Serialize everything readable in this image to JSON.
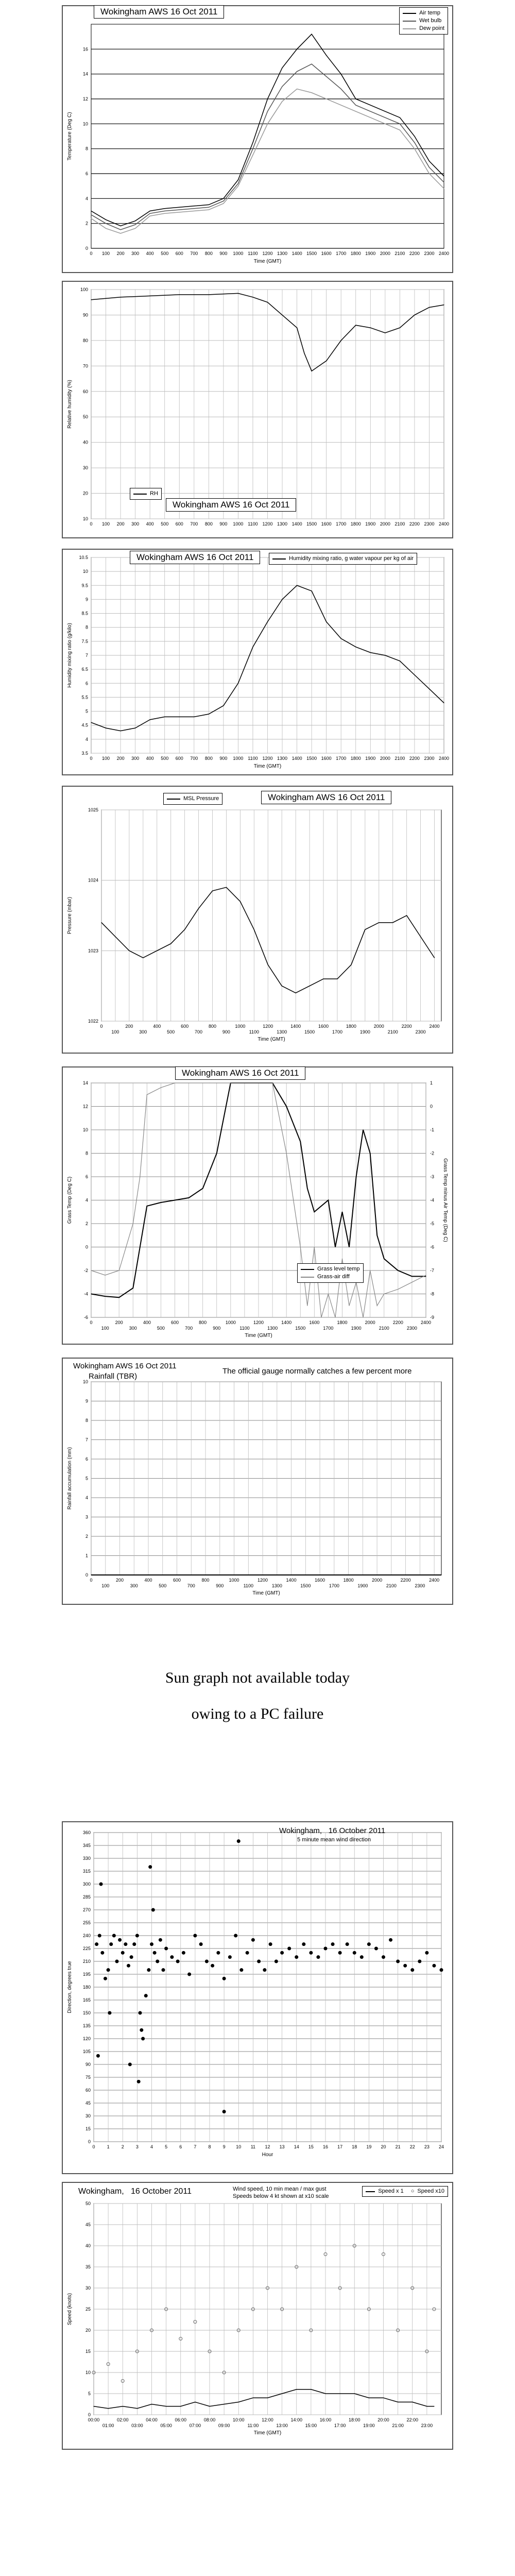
{
  "charts": [
    {
      "id": "temperature",
      "type": "line",
      "title": "Wokingham AWS 16 Oct 2011",
      "xlabel": "Time (GMT)",
      "ylabel": "Temperature (Deg C)",
      "xlim": [
        0,
        2400
      ],
      "ylim": [
        0,
        18
      ],
      "legend_position": "top-right",
      "series": [
        {
          "name": "Air temp",
          "color": "#000000",
          "x": [
            0,
            100,
            200,
            300,
            400,
            500,
            600,
            700,
            800,
            900,
            1000,
            1100,
            1200,
            1300,
            1400,
            1500,
            1600,
            1700,
            1800,
            1900,
            2000,
            2100,
            2200,
            2300,
            2400
          ],
          "y": [
            3,
            2.3,
            1.8,
            2.2,
            3,
            3.2,
            3.3,
            3.4,
            3.5,
            4,
            5.5,
            8.5,
            12,
            14.5,
            16,
            17.2,
            15.5,
            14,
            12,
            11.5,
            11,
            10.5,
            9,
            7,
            5.8
          ]
        },
        {
          "name": "Wet bulb",
          "color": "#555555",
          "x": [
            0,
            100,
            200,
            300,
            400,
            500,
            600,
            700,
            800,
            900,
            1000,
            1100,
            1200,
            1300,
            1400,
            1500,
            1600,
            1700,
            1800,
            1900,
            2000,
            2100,
            2200,
            2300,
            2400
          ],
          "y": [
            2.7,
            2,
            1.5,
            1.9,
            2.8,
            3,
            3.1,
            3.2,
            3.3,
            3.8,
            5.2,
            8,
            11,
            13,
            14.2,
            14.8,
            13.8,
            12.8,
            11.5,
            11,
            10.5,
            10,
            8.5,
            6.5,
            5.3
          ]
        },
        {
          "name": "Dew point",
          "color": "#999999",
          "x": [
            0,
            100,
            200,
            300,
            400,
            500,
            600,
            700,
            800,
            900,
            1000,
            1100,
            1200,
            1300,
            1400,
            1500,
            1600,
            1700,
            1800,
            1900,
            2000,
            2100,
            2200,
            2300,
            2400
          ],
          "y": [
            2.4,
            1.6,
            1.2,
            1.6,
            2.6,
            2.8,
            2.9,
            3,
            3.1,
            3.6,
            5,
            7.5,
            10,
            11.8,
            12.8,
            12.5,
            12,
            11.5,
            11,
            10.5,
            10,
            9.5,
            8,
            6,
            4.8
          ]
        }
      ]
    },
    {
      "id": "humidity",
      "type": "line",
      "title": "Wokingham AWS 16 Oct 2011",
      "xlabel": "",
      "ylabel": "Relative humidity (%)",
      "xlim": [
        0,
        2400
      ],
      "ylim": [
        10,
        100
      ],
      "legend_position": "bottom-left",
      "series": [
        {
          "name": "RH",
          "color": "#000000",
          "x": [
            0,
            200,
            400,
            600,
            800,
            1000,
            1100,
            1200,
            1300,
            1400,
            1450,
            1500,
            1550,
            1600,
            1700,
            1800,
            1900,
            2000,
            2100,
            2200,
            2300,
            2400
          ],
          "y": [
            96,
            97,
            97.5,
            98,
            98,
            98.5,
            97,
            95,
            90,
            85,
            75,
            68,
            70,
            72,
            80,
            86,
            85,
            83,
            85,
            90,
            93,
            94
          ]
        }
      ]
    },
    {
      "id": "mixing",
      "type": "line",
      "title": "Wokingham AWS 16 Oct 2011",
      "xlabel": "Time (GMT)",
      "ylabel": "Humidity mixing ratio (g/kilo)",
      "xlim": [
        0,
        2400
      ],
      "ylim": [
        3.5,
        10.5
      ],
      "legend_position": "top-right",
      "series": [
        {
          "name": "Humidity mixing ratio, g water vapour per kg of air",
          "color": "#000000",
          "x": [
            0,
            100,
            200,
            300,
            400,
            500,
            600,
            700,
            800,
            900,
            1000,
            1100,
            1200,
            1300,
            1400,
            1500,
            1600,
            1700,
            1800,
            1900,
            2000,
            2100,
            2200,
            2300,
            2400
          ],
          "y": [
            4.6,
            4.4,
            4.3,
            4.4,
            4.7,
            4.8,
            4.8,
            4.8,
            4.9,
            5.2,
            6,
            7.3,
            8.2,
            9,
            9.5,
            9.3,
            8.2,
            7.6,
            7.3,
            7.1,
            7,
            6.8,
            6.3,
            5.8,
            5.3
          ]
        }
      ]
    },
    {
      "id": "pressure",
      "type": "line",
      "title": "Wokingham AWS 16 Oct 2011",
      "xlabel": "Time (GMT)",
      "ylabel": "Pressure (mbar)",
      "xlim": [
        0,
        2450
      ],
      "ylim": [
        1022,
        1025
      ],
      "legend_position": "top-left",
      "series": [
        {
          "name": "MSL Pressure",
          "color": "#000000",
          "x": [
            0,
            100,
            200,
            300,
            400,
            500,
            600,
            700,
            800,
            900,
            1000,
            1100,
            1200,
            1300,
            1400,
            1500,
            1600,
            1700,
            1800,
            1900,
            2000,
            2100,
            2200,
            2300,
            2400
          ],
          "y": [
            1023.4,
            1023.2,
            1023.0,
            1022.9,
            1023.0,
            1023.1,
            1023.3,
            1023.6,
            1023.85,
            1023.9,
            1023.7,
            1023.3,
            1022.8,
            1022.5,
            1022.4,
            1022.5,
            1022.6,
            1022.6,
            1022.8,
            1023.3,
            1023.4,
            1023.4,
            1023.5,
            1023.2,
            1022.9
          ]
        }
      ]
    },
    {
      "id": "grass",
      "type": "line",
      "title": "Wokingham AWS 16 Oct 2011",
      "xlabel": "Time (GMT)",
      "ylabel": "Grass Temp (Deg C)",
      "ylabel_right": "Grass Temp minus Air Temp (Deg C)",
      "xlim": [
        0,
        2400
      ],
      "ylim": [
        -6,
        14
      ],
      "ylim_right": [
        -9,
        1
      ],
      "legend_position": "bottom-right",
      "series": [
        {
          "name": "Grass level temp",
          "color": "#000000",
          "x": [
            0,
            100,
            200,
            300,
            400,
            500,
            600,
            700,
            800,
            900,
            1000,
            1300,
            1400,
            1500,
            1550,
            1600,
            1700,
            1750,
            1800,
            1850,
            1900,
            1950,
            2000,
            2050,
            2100,
            2200,
            2300,
            2400
          ],
          "y": [
            -4,
            -4.2,
            -4.3,
            -3.5,
            3.5,
            3.8,
            4,
            4.2,
            5,
            8,
            14,
            14,
            12,
            9,
            5,
            3,
            4,
            0,
            3,
            0,
            6,
            10,
            8,
            1,
            -1,
            -2,
            -2.5,
            -2.5
          ]
        },
        {
          "name": "Grass-air diff",
          "color": "#888888",
          "axis": "right",
          "x": [
            0,
            100,
            200,
            300,
            350,
            400,
            500,
            600,
            700,
            800,
            850,
            900,
            1300,
            1400,
            1500,
            1550,
            1600,
            1650,
            1700,
            1750,
            1800,
            1850,
            1900,
            1950,
            2000,
            2050,
            2100,
            2200,
            2300,
            2400
          ],
          "y": [
            -7,
            -7.2,
            -7,
            -5,
            -3,
            0.5,
            0.8,
            1,
            1,
            1,
            1,
            1,
            1,
            -2,
            -6,
            -8.5,
            -6,
            -9,
            -8,
            -9,
            -6.5,
            -8.5,
            -7.5,
            -9,
            -7,
            -8.5,
            -8,
            -7.8,
            -7.5,
            -7.2
          ]
        }
      ]
    },
    {
      "id": "rainfall",
      "type": "line",
      "title": "Wokingham AWS 16 Oct 2011",
      "title2": "Rainfall (TBR)",
      "note": "The official gauge normally catches a few percent more",
      "xlabel": "Time (GMT)",
      "ylabel": "Rainfall accumulation (mm)",
      "xlim": [
        0,
        2450
      ],
      "ylim": [
        0,
        10
      ],
      "series": [
        {
          "name": "Rainfall",
          "color": "#000000",
          "x": [
            0,
            2450
          ],
          "y": [
            0,
            0
          ]
        }
      ]
    },
    {
      "id": "wind-direction",
      "type": "scatter",
      "title": "Wokingham,   16 October 2011",
      "subtitle": "5 minute mean wind direction",
      "xlabel": "Hour",
      "ylabel": "Direction, degrees true",
      "xlim": [
        0,
        24
      ],
      "ylim": [
        0,
        360
      ],
      "series": [
        {
          "name": "Direction",
          "color": "#000000",
          "x": [
            0.2,
            0.4,
            0.6,
            0.8,
            1.0,
            1.2,
            1.4,
            1.6,
            1.8,
            2.0,
            2.2,
            2.4,
            2.6,
            2.8,
            3.0,
            3.2,
            3.4,
            3.6,
            3.8,
            4.0,
            4.2,
            4.4,
            4.6,
            4.8,
            5.0,
            5.4,
            5.8,
            6.2,
            6.6,
            7.0,
            7.4,
            7.8,
            8.2,
            8.6,
            9.0,
            9.4,
            9.8,
            10.2,
            10.6,
            11.0,
            11.4,
            11.8,
            12.2,
            12.6,
            13.0,
            13.5,
            14,
            14.5,
            15,
            15.5,
            16,
            16.5,
            17,
            17.5,
            18,
            18.5,
            19,
            19.5,
            20,
            20.5,
            21,
            21.5,
            22,
            22.5,
            23,
            23.5,
            24,
            0.3,
            1.1,
            2.5,
            3.1,
            3.3,
            3.9,
            9.0,
            10.0,
            0.5,
            4.1
          ],
          "y": [
            230,
            240,
            220,
            190,
            200,
            230,
            240,
            210,
            235,
            220,
            230,
            205,
            215,
            230,
            240,
            150,
            120,
            170,
            200,
            230,
            220,
            210,
            235,
            200,
            225,
            215,
            210,
            220,
            195,
            240,
            230,
            210,
            205,
            220,
            190,
            215,
            240,
            200,
            220,
            235,
            210,
            200,
            230,
            210,
            220,
            225,
            215,
            230,
            220,
            215,
            225,
            230,
            220,
            230,
            220,
            215,
            230,
            225,
            215,
            235,
            210,
            205,
            200,
            210,
            220,
            205,
            200,
            100,
            150,
            90,
            70,
            130,
            320,
            35,
            350,
            300,
            270
          ]
        }
      ]
    },
    {
      "id": "wind-speed",
      "type": "line",
      "title": "Wokingham,   16 October 2011",
      "subtitle": "Wind speed, 10 min mean / max gust",
      "subtitle2": "Speeds below 4 kt shown at x10 scale",
      "xlabel": "Time (GMT)",
      "ylabel": "Speed (knots)",
      "xlim": [
        0,
        24
      ],
      "ylim": [
        0,
        50
      ],
      "series": [
        {
          "name": "Speed x 1",
          "color": "#000000",
          "x": [
            0,
            1,
            2,
            3,
            4,
            5,
            6,
            7,
            8,
            9,
            10,
            11,
            12,
            13,
            14,
            15,
            16,
            17,
            18,
            19,
            20,
            21,
            22,
            23,
            23.5
          ],
          "y": [
            2,
            1.5,
            2,
            1.5,
            2.5,
            2,
            2,
            3,
            2,
            2.5,
            3,
            4,
            4,
            5,
            6,
            6,
            5,
            5,
            5,
            4,
            4,
            3,
            3,
            2,
            2
          ]
        },
        {
          "name": "Speed x10",
          "color": "#666666",
          "x": [
            0,
            1,
            2,
            3,
            4,
            5,
            6,
            7,
            8,
            9,
            10,
            11,
            12,
            13,
            14,
            15,
            16,
            17,
            18,
            19,
            20,
            21,
            22,
            23,
            23.5
          ],
          "y": [
            10,
            12,
            8,
            15,
            20,
            25,
            18,
            22,
            15,
            10,
            20,
            25,
            30,
            25,
            35,
            20,
            38,
            30,
            40,
            25,
            38,
            20,
            30,
            15,
            25
          ]
        }
      ]
    }
  ],
  "notice": {
    "line1": "Sun graph not available today",
    "line2": "owing to a PC failure"
  },
  "axes_text": {
    "time_ticks": [
      "0",
      "100",
      "200",
      "300",
      "400",
      "500",
      "600",
      "700",
      "800",
      "900",
      "1000",
      "1100",
      "1200",
      "1300",
      "1400",
      "1500",
      "1600",
      "1700",
      "1800",
      "1900",
      "2000",
      "2100",
      "2200",
      "2300",
      "2400"
    ],
    "hour_ticks": [
      "0",
      "1",
      "2",
      "3",
      "4",
      "5",
      "6",
      "7",
      "8",
      "9",
      "10",
      "11",
      "12",
      "13",
      "14",
      "15",
      "16",
      "17",
      "18",
      "19",
      "20",
      "21",
      "22",
      "23",
      "24"
    ],
    "clock_ticks": [
      "00:00",
      "01:00",
      "02:00",
      "03:00",
      "04:00",
      "05:00",
      "06:00",
      "07:00",
      "08:00",
      "09:00",
      "10:00",
      "11:00",
      "12:00",
      "13:00",
      "14:00",
      "15:00",
      "16:00",
      "17:00",
      "18:00",
      "19:00",
      "20:00",
      "21:00",
      "22:00",
      "23:00"
    ]
  }
}
